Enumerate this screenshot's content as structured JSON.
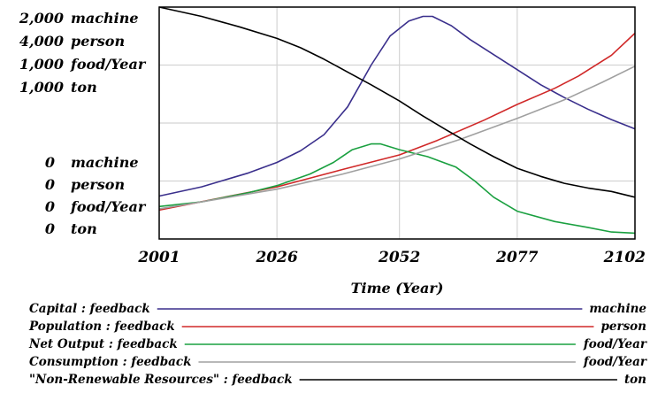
{
  "chart_data": {
    "type": "line",
    "xlabel": "Time (Year)",
    "x_ticks": [
      "2001",
      "2026",
      "2052",
      "2077",
      "2102"
    ],
    "xlim": [
      2001,
      2102
    ],
    "axis_top_labels": [
      {
        "value": "2,000",
        "unit": "machine"
      },
      {
        "value": "4,000",
        "unit": "person"
      },
      {
        "value": "1,000",
        "unit": "food/Year"
      },
      {
        "value": "1,000",
        "unit": "ton"
      }
    ],
    "axis_bottom_labels": [
      {
        "value": "0",
        "unit": "machine"
      },
      {
        "value": "0",
        "unit": "person"
      },
      {
        "value": "0",
        "unit": "food/Year"
      },
      {
        "value": "0",
        "unit": "ton"
      }
    ],
    "series": [
      {
        "name": "Capital : feedback",
        "unit": "machine",
        "color": "#3a2f8c",
        "ymax": 2000,
        "points": [
          [
            2001,
            370
          ],
          [
            2010,
            450
          ],
          [
            2020,
            570
          ],
          [
            2026,
            660
          ],
          [
            2031,
            760
          ],
          [
            2036,
            900
          ],
          [
            2041,
            1140
          ],
          [
            2046,
            1500
          ],
          [
            2050,
            1750
          ],
          [
            2054,
            1880
          ],
          [
            2057,
            1920
          ],
          [
            2059,
            1920
          ],
          [
            2063,
            1840
          ],
          [
            2067,
            1720
          ],
          [
            2072,
            1590
          ],
          [
            2077,
            1460
          ],
          [
            2082,
            1330
          ],
          [
            2087,
            1220
          ],
          [
            2092,
            1120
          ],
          [
            2097,
            1030
          ],
          [
            2102,
            950
          ]
        ]
      },
      {
        "name": "Population : feedback",
        "unit": "person",
        "color": "#d02828",
        "ymax": 4000,
        "points": [
          [
            2001,
            500
          ],
          [
            2026,
            900
          ],
          [
            2040,
            1200
          ],
          [
            2052,
            1450
          ],
          [
            2060,
            1700
          ],
          [
            2070,
            2050
          ],
          [
            2077,
            2320
          ],
          [
            2085,
            2600
          ],
          [
            2090,
            2810
          ],
          [
            2097,
            3170
          ],
          [
            2102,
            3550
          ]
        ]
      },
      {
        "name": "Net Output : feedback",
        "unit": "food/Year",
        "color": "#1aa040",
        "ymax": 1000,
        "points": [
          [
            2001,
            140
          ],
          [
            2010,
            160
          ],
          [
            2020,
            200
          ],
          [
            2026,
            230
          ],
          [
            2033,
            280
          ],
          [
            2038,
            330
          ],
          [
            2042,
            385
          ],
          [
            2046,
            410
          ],
          [
            2048,
            410
          ],
          [
            2052,
            385
          ],
          [
            2058,
            355
          ],
          [
            2064,
            310
          ],
          [
            2068,
            250
          ],
          [
            2072,
            180
          ],
          [
            2077,
            120
          ],
          [
            2085,
            75
          ],
          [
            2092,
            50
          ],
          [
            2097,
            30
          ],
          [
            2102,
            25
          ]
        ]
      },
      {
        "name": "Consumption : feedback",
        "unit": "food/Year",
        "color": "#a0a0a0",
        "ymax": 1000,
        "points": [
          [
            2001,
            130
          ],
          [
            2010,
            160
          ],
          [
            2026,
            215
          ],
          [
            2040,
            280
          ],
          [
            2052,
            345
          ],
          [
            2065,
            430
          ],
          [
            2077,
            520
          ],
          [
            2087,
            600
          ],
          [
            2095,
            675
          ],
          [
            2102,
            745
          ]
        ]
      },
      {
        "name": "\"Non-Renewable Resources\" : feedback",
        "unit": "ton",
        "color": "#000000",
        "ymax": 1000,
        "points": [
          [
            2001,
            1000
          ],
          [
            2010,
            960
          ],
          [
            2018,
            915
          ],
          [
            2026,
            865
          ],
          [
            2031,
            825
          ],
          [
            2036,
            775
          ],
          [
            2041,
            720
          ],
          [
            2046,
            665
          ],
          [
            2052,
            595
          ],
          [
            2057,
            530
          ],
          [
            2062,
            470
          ],
          [
            2067,
            410
          ],
          [
            2072,
            355
          ],
          [
            2077,
            305
          ],
          [
            2082,
            270
          ],
          [
            2087,
            240
          ],
          [
            2092,
            220
          ],
          [
            2097,
            205
          ],
          [
            2102,
            180
          ]
        ]
      }
    ]
  }
}
